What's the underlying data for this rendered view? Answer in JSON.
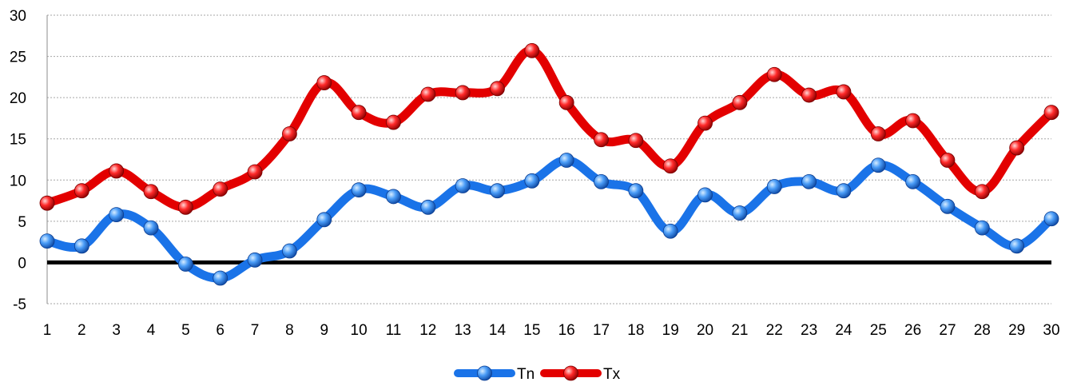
{
  "chart_data": {
    "type": "line",
    "title": "",
    "xlabel": "",
    "ylabel": "",
    "x": [
      "1",
      "2",
      "3",
      "4",
      "5",
      "6",
      "7",
      "8",
      "9",
      "10",
      "11",
      "12",
      "13",
      "14",
      "15",
      "16",
      "17",
      "18",
      "19",
      "20",
      "21",
      "22",
      "23",
      "24",
      "25",
      "26",
      "27",
      "28",
      "29",
      "30"
    ],
    "ylim": [
      -5,
      30
    ],
    "yticks": [
      "-5",
      "0",
      "5",
      "10",
      "15",
      "20",
      "25",
      "30"
    ],
    "grid": true,
    "legend_position": "bottom",
    "series": [
      {
        "name": "Tn",
        "color": "#1a73e8",
        "values": [
          2.6,
          2.0,
          5.8,
          4.2,
          -0.2,
          -1.9,
          0.3,
          1.4,
          5.2,
          8.8,
          8.0,
          6.7,
          9.3,
          8.7,
          9.9,
          12.4,
          9.8,
          8.7,
          3.8,
          8.2,
          6.0,
          9.2,
          9.8,
          8.7,
          11.8,
          9.8,
          6.8,
          4.2,
          2.0,
          5.3
        ]
      },
      {
        "name": "Tx",
        "color": "#e30000",
        "values": [
          7.2,
          8.7,
          11.1,
          8.6,
          6.7,
          8.9,
          11.0,
          15.6,
          21.8,
          18.2,
          17.0,
          20.4,
          20.6,
          21.1,
          25.7,
          19.4,
          14.9,
          14.8,
          11.7,
          16.9,
          19.4,
          22.8,
          20.3,
          20.7,
          15.6,
          17.2,
          12.4,
          8.6,
          13.9,
          18.2
        ]
      }
    ]
  }
}
